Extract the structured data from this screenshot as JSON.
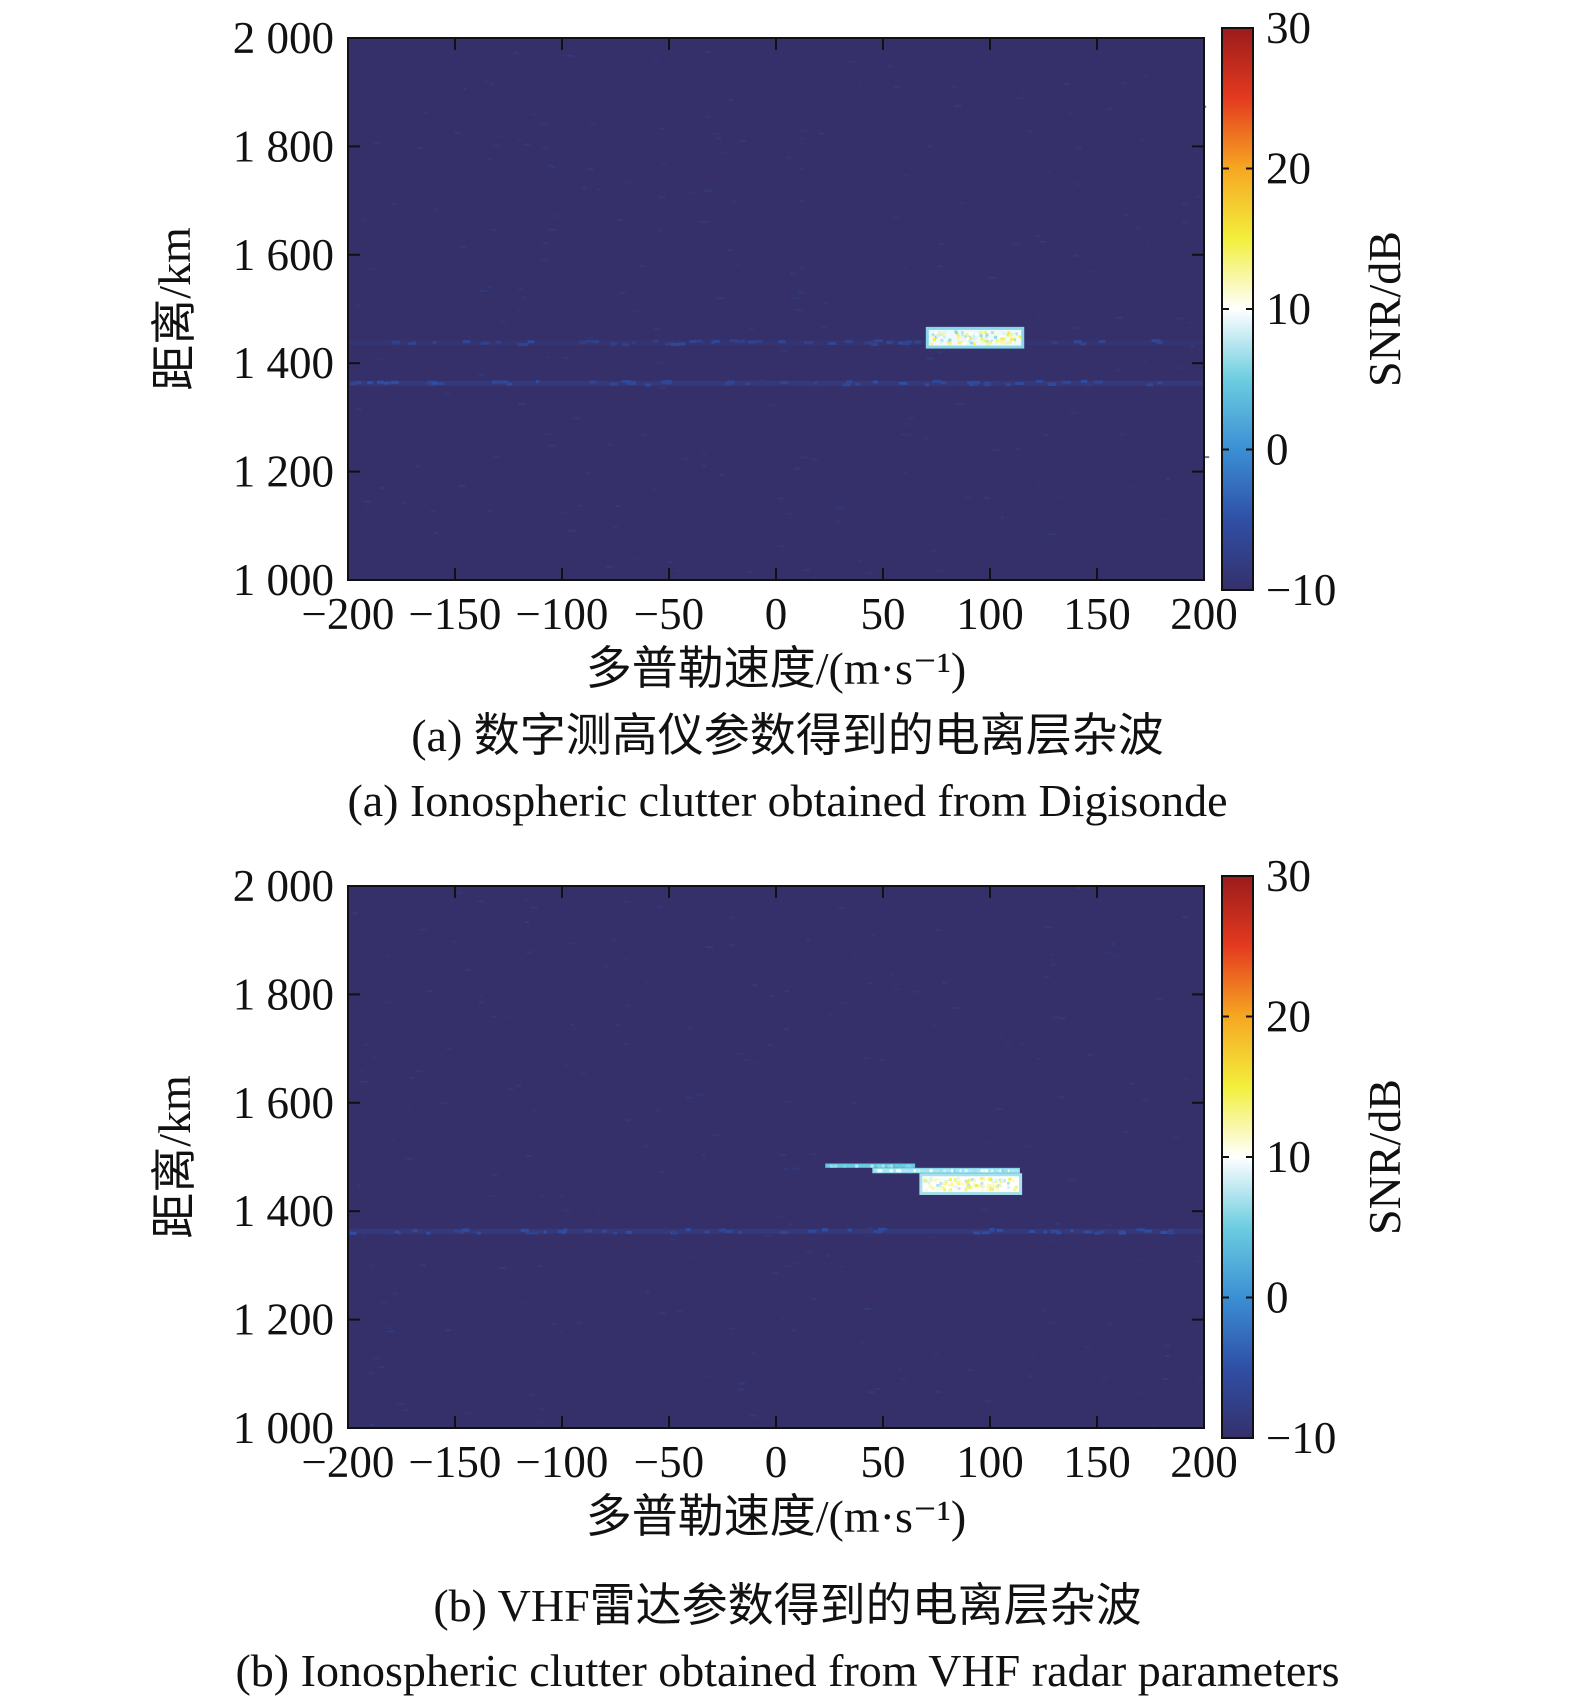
{
  "chart_data": [
    {
      "type": "heatmap",
      "panel": "a",
      "xlabel": "多普勒速度/(m·s⁻¹)",
      "ylabel": "距离/km",
      "colorbar_label": "SNR/dB",
      "xlim": [
        -200,
        200
      ],
      "ylim": [
        1000,
        2000
      ],
      "clim": [
        -10,
        30
      ],
      "x_ticks": [
        -200,
        -150,
        -100,
        -50,
        0,
        50,
        100,
        150,
        200
      ],
      "x_tick_labels": [
        "−200",
        "−150",
        "−100",
        "−50",
        "0",
        "50",
        "100",
        "150",
        "200"
      ],
      "y_ticks": [
        1000,
        1200,
        1400,
        1600,
        1800,
        2000
      ],
      "y_tick_labels": [
        "1 000",
        "1 200",
        "1 400",
        "1 600",
        "1 800",
        "2 000"
      ],
      "colorbar_ticks": [
        -10,
        0,
        10,
        20,
        30
      ],
      "colorbar_tick_labels": [
        "−10",
        "0",
        "10",
        "20",
        "30"
      ],
      "colormap": [
        "#35306a",
        "#2f4fa6",
        "#3b8fd4",
        "#6ccde0",
        "#ffffff",
        "#f2ef3c",
        "#f6a722",
        "#e43a1f",
        "#9b1b1b"
      ],
      "background_snr": -10,
      "noise_lines": [
        {
          "y": 1362,
          "snr": -8
        },
        {
          "y": 1437,
          "snr": -9
        }
      ],
      "clutter_regions": [
        {
          "x": [
            70,
            116
          ],
          "y": [
            1427,
            1467
          ],
          "snr_edge": 6,
          "snr_core": 13
        }
      ]
    },
    {
      "type": "heatmap",
      "panel": "b",
      "xlabel": "多普勒速度/(m·s⁻¹)",
      "ylabel": "距离/km",
      "colorbar_label": "SNR/dB",
      "xlim": [
        -200,
        200
      ],
      "ylim": [
        1000,
        2000
      ],
      "clim": [
        -10,
        30
      ],
      "x_ticks": [
        -200,
        -150,
        -100,
        -50,
        0,
        50,
        100,
        150,
        200
      ],
      "x_tick_labels": [
        "−200",
        "−150",
        "−100",
        "−50",
        "0",
        "50",
        "100",
        "150",
        "200"
      ],
      "y_ticks": [
        1000,
        1200,
        1400,
        1600,
        1800,
        2000
      ],
      "y_tick_labels": [
        "1 000",
        "1 200",
        "1 400",
        "1 600",
        "1 800",
        "2 000"
      ],
      "colorbar_ticks": [
        -10,
        0,
        10,
        20,
        30
      ],
      "colorbar_tick_labels": [
        "−10",
        "0",
        "10",
        "20",
        "30"
      ],
      "colormap": [
        "#35306a",
        "#2f4fa6",
        "#3b8fd4",
        "#6ccde0",
        "#ffffff",
        "#f2ef3c",
        "#f6a722",
        "#e43a1f",
        "#9b1b1b"
      ],
      "background_snr": -10,
      "noise_lines": [
        {
          "y": 1362,
          "snr": -8
        }
      ],
      "clutter_regions": [
        {
          "x": [
            23,
            65
          ],
          "y": [
            1480,
            1488
          ],
          "snr_edge": 4,
          "snr_core": 6
        },
        {
          "x": [
            45,
            114
          ],
          "y": [
            1470,
            1480
          ],
          "snr_edge": 6,
          "snr_core": 9
        },
        {
          "x": [
            67,
            115
          ],
          "y": [
            1430,
            1470
          ],
          "snr_edge": 7,
          "snr_core": 13
        }
      ]
    }
  ],
  "captions": {
    "a_zh": "(a) 数字测高仪参数得到的电离层杂波",
    "a_en": "(a) Ionospheric clutter obtained from Digisonde",
    "b_zh": "(b) VHF雷达参数得到的电离层杂波",
    "b_en": "(b) Ionospheric clutter obtained from VHF radar parameters"
  }
}
